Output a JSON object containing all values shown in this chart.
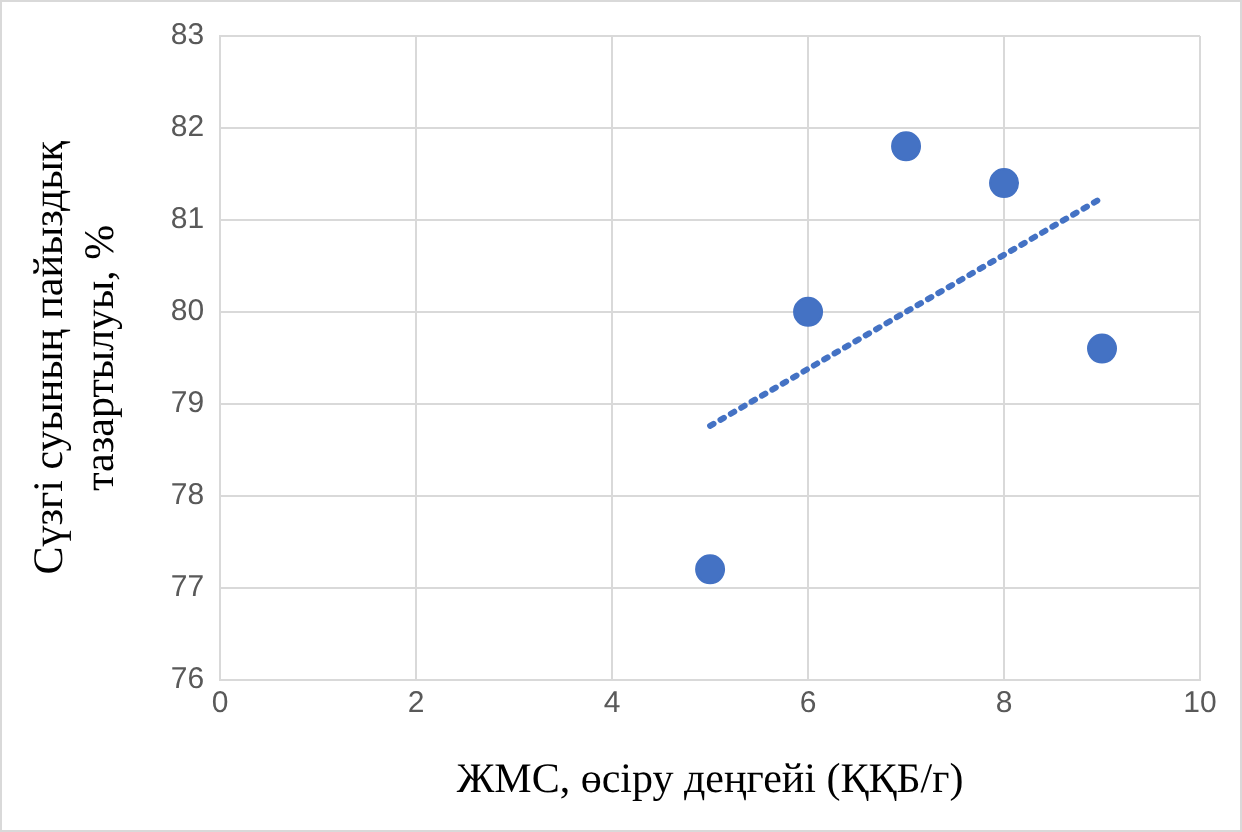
{
  "chart_data": {
    "type": "scatter",
    "xlabel": "ЖМС, өсіру деңгейі (ҚҚБ/г)",
    "ylabel": "Сүзгі суының пайыздық тазартылуы, %",
    "x": [
      5,
      6,
      7,
      8,
      9
    ],
    "series": [
      {
        "color": "#4472c4",
        "values": [
          77.2,
          80,
          81.8,
          81.4,
          79.6
        ]
      },
      {
        "type": "line",
        "x": [
          5,
          9
        ],
        "color": "#4472c4",
        "values": [
          78.76,
          81.24
        ],
        "line_style": "dotted",
        "marker": "none"
      }
    ],
    "marker": "circle",
    "xlim": [
      0,
      10
    ],
    "xticks": [
      0,
      2,
      4,
      6,
      8,
      10
    ],
    "ylim": [
      76,
      83
    ],
    "yticks": [
      76,
      77,
      78,
      79,
      80,
      81,
      82,
      83
    ],
    "grid": true,
    "legend": false
  }
}
